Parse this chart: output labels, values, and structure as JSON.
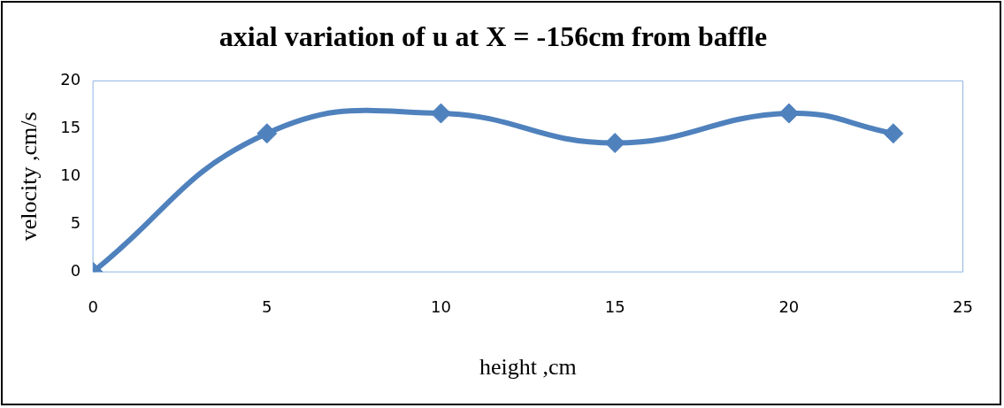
{
  "chart_data": {
    "type": "line",
    "title": "axial variation of u at X = -156cm from baffle",
    "xlabel": "height ,cm",
    "ylabel": "velocity ,cm/s",
    "x": [
      0,
      5,
      10,
      15,
      20,
      23
    ],
    "series": [
      {
        "color": "#4f81bd",
        "values": [
          0,
          14.5,
          16.6,
          13.5,
          16.6,
          14.5
        ]
      }
    ],
    "xlim": [
      0,
      25
    ],
    "xticks": [
      0,
      5,
      10,
      15,
      20,
      25
    ],
    "ylim": [
      0,
      20
    ],
    "yticks": [
      0,
      5,
      10,
      15,
      20
    ],
    "grid": false,
    "legend": false,
    "marker": "diamond",
    "line_style": "solid"
  }
}
